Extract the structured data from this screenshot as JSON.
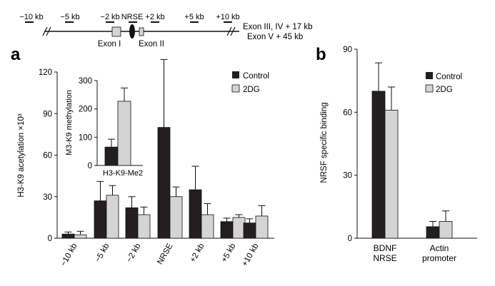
{
  "gene_map": {
    "probe_labels": [
      "−10 kb",
      "−5 kb",
      "−2 kb",
      "NRSE",
      "+2 kb",
      "+5 kb",
      "+10 kb"
    ],
    "exon1_label": "Exon I",
    "exon2_label": "Exon II",
    "right_text_1": "Exon III, IV + 17 kb",
    "right_text_2": "Exon V + 45 kb"
  },
  "colors": {
    "control": "#231f20",
    "twodg": "#d4d4d4",
    "axis": "#111111"
  },
  "chart_data": [
    {
      "panel": "a",
      "type": "bar",
      "title": "",
      "xlabel": "",
      "ylabel": "H3-K9 acetylation ×10³",
      "ylim": [
        0,
        120
      ],
      "yticks": [
        0,
        30,
        60,
        90,
        120
      ],
      "categories": [
        "−10 kb",
        "−5 kb",
        "−2 kb",
        "NRSE",
        "+2 kb",
        "+5 kb",
        "+10 kb"
      ],
      "series": [
        {
          "name": "Control",
          "values": [
            3,
            27,
            22,
            80,
            35,
            12,
            11
          ],
          "error": [
            1.5,
            14,
            8,
            49,
            17,
            2.5,
            3
          ]
        },
        {
          "name": "2DG",
          "values": [
            2.5,
            31,
            17,
            30,
            17,
            15,
            16
          ],
          "error": [
            2.5,
            7,
            5.5,
            7,
            8,
            2,
            7.5
          ]
        }
      ],
      "legend_position": "top-right"
    },
    {
      "panel": "a-inset",
      "type": "bar",
      "title": "",
      "xlabel": "H3-K9-Me2",
      "ylabel": "M3-K9 methylation",
      "ylim": [
        0,
        300
      ],
      "yticks": [
        0,
        100,
        200,
        300
      ],
      "categories": [
        "H3-K9-Me2"
      ],
      "series": [
        {
          "name": "Control",
          "values": [
            65
          ],
          "error": [
            28
          ]
        },
        {
          "name": "2DG",
          "values": [
            227
          ],
          "error": [
            47
          ]
        }
      ]
    },
    {
      "panel": "b",
      "type": "bar",
      "title": "",
      "xlabel": "",
      "ylabel": "NRSF specific binding",
      "ylim": [
        0,
        90
      ],
      "yticks": [
        0,
        30,
        60,
        90
      ],
      "categories": [
        "BDNF\nNRSE",
        "Actin\npromoter"
      ],
      "series": [
        {
          "name": "Control",
          "values": [
            70,
            5.5
          ],
          "error": [
            13.5,
            2.5
          ]
        },
        {
          "name": "2DG",
          "values": [
            61,
            8
          ],
          "error": [
            11,
            5
          ]
        }
      ],
      "legend_position": "top-right"
    }
  ],
  "panel_labels": {
    "a": "a",
    "b": "b"
  },
  "legend": {
    "control": "Control",
    "twodg": "2DG"
  }
}
